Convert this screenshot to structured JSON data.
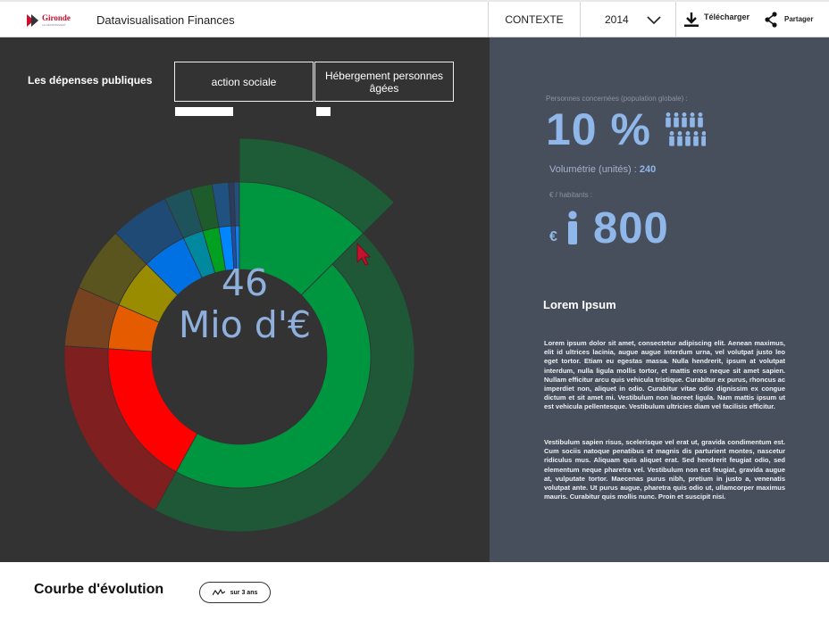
{
  "header": {
    "logo_text": "Gironde",
    "logo_subtext": "LE DÉPARTEMENT",
    "app_title": "Datavisualisation Finances",
    "context_label": "CONTEXTE",
    "year_selected": "2014",
    "download_label": "Télécharger",
    "share_label": "Partager"
  },
  "main": {
    "section_title": "Les dépenses publiques",
    "breadcrumbs": [
      "action sociale",
      "Hébergement personnes âgées"
    ],
    "total_value": "46",
    "total_unit": "Mio d'€"
  },
  "chart_data": {
    "type": "sunburst",
    "center_label": "46 Mio d'€",
    "inner_ring": [
      {
        "name": "segment-green-large",
        "color": "#00953f",
        "share": 0.58
      },
      {
        "name": "segment-red",
        "color": "#ff0000",
        "share": 0.18
      },
      {
        "name": "segment-orange",
        "color": "#e55b00",
        "share": 0.055
      },
      {
        "name": "segment-olive",
        "color": "#9a8c00",
        "share": 0.06
      },
      {
        "name": "segment-blue",
        "color": "#0071e3",
        "share": 0.055
      },
      {
        "name": "segment-teal",
        "color": "#00889f",
        "share": 0.025
      },
      {
        "name": "segment-green-small",
        "color": "#00a021",
        "share": 0.02
      },
      {
        "name": "segment-light-blue",
        "color": "#0086ff",
        "share": 0.015
      },
      {
        "name": "segment-dark-blue",
        "color": "#1f4fa8",
        "share": 0.005
      },
      {
        "name": "segment-bright-blue",
        "color": "#0d7ff0",
        "share": 0.005
      }
    ],
    "highlight": {
      "name": "segment-green-large",
      "color": "#00953f",
      "share": 0.125
    }
  },
  "stats": {
    "persons_label": "Personnes concernées (population globale) :",
    "persons_percent": "10 %",
    "volume_label": "Volumétrie (unités) :",
    "volume_value": "240",
    "per_inhabitant_label": "€ / habitants :",
    "euro_symbol": "€",
    "per_inhabitant_value": "800",
    "lorem_title": "Lorem Ipsum",
    "lorem_p1": "Lorem ipsum dolor sit amet, consectetur adipiscing elit. Aenean maximus, elit id ultrices lacinia, augue augue interdum urna, vel volutpat justo leo eget tortor. Etiam eu egestas massa. Nulla hendrerit, ipsum at volutpat interdum, nulla ligula mollis tortor, et mattis eros neque sit amet sapien. Nullam efficitur arcu quis vehicula tristique. Curabitur ex purus, rhoncus ac imperdiet non, aliquet in odio. Curabitur vitae odio dignissim ex congue dictum et sit amet mi. Vestibulum non laoreet ligula. Nam mattis ipsum ut est vehicula pellentesque. Vestibulum ultricies diam vel facilisis efficitur.",
    "lorem_p2": "Vestibulum sapien risus, scelerisque vel erat ut, gravida condimentum est. Cum sociis natoque penatibus et magnis dis parturient montes, nascetur ridiculus mus. Aliquam quis aliquet erat. Sed hendrerit feugiat odio, sed elementum neque pharetra vel. Vestibulum non est feugiat, gravida augue at, vulputate tortor. Maecenas purus nibh, pretium in justo a, venenatis volutpat ante. Ut purus augue, pharetra quis odio ut, ullamcorper maximus mauris. Curabitur quis mollis nunc. Proin et suscipit nisi."
  },
  "evolution": {
    "title": "Courbe d'évolution",
    "button_label": "sur 3 ans"
  },
  "colors": {
    "dark_panel": "#333333",
    "right_panel": "#484f5c",
    "accent_blue": "#8fb7ea",
    "cursor_red": "#c4122f"
  }
}
